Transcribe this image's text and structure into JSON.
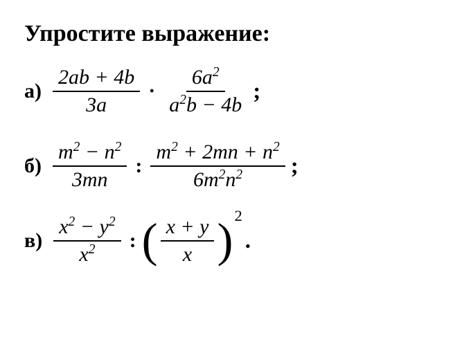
{
  "title": "Упростите выражение:",
  "problems": {
    "a": {
      "label": "а)",
      "frac1_num": "2ab + 4b",
      "frac1_den": "3a",
      "op": "·",
      "frac2_num_base": "6a",
      "frac2_num_exp": "2",
      "frac2_den_t1": "a",
      "frac2_den_e1": "2",
      "frac2_den_rest": "b − 4b",
      "end": ";"
    },
    "b": {
      "label": "б)",
      "frac1_num_t1": "m",
      "frac1_num_e1": "2",
      "frac1_num_mid": " − n",
      "frac1_num_e2": "2",
      "frac1_den": "3mn",
      "op": ":",
      "frac2_num_t1": "m",
      "frac2_num_e1": "2",
      "frac2_num_mid": " + 2mn + n",
      "frac2_num_e2": "2",
      "frac2_den_t1": "6m",
      "frac2_den_e1": "2",
      "frac2_den_t2": "n",
      "frac2_den_e2": "2",
      "end": ";"
    },
    "c": {
      "label": "в)",
      "frac1_num_t1": "x",
      "frac1_num_e1": "2",
      "frac1_num_mid": " − y",
      "frac1_num_e2": "2",
      "frac1_den_t1": "x",
      "frac1_den_e1": "2",
      "op": ":",
      "frac2_num": "x + y",
      "frac2_den": "x",
      "paren_exp": "2",
      "end": "."
    }
  },
  "styling": {
    "background_color": "#ffffff",
    "text_color": "#000000",
    "title_fontsize": 34,
    "body_fontsize": 30,
    "font_family": "Times New Roman"
  }
}
